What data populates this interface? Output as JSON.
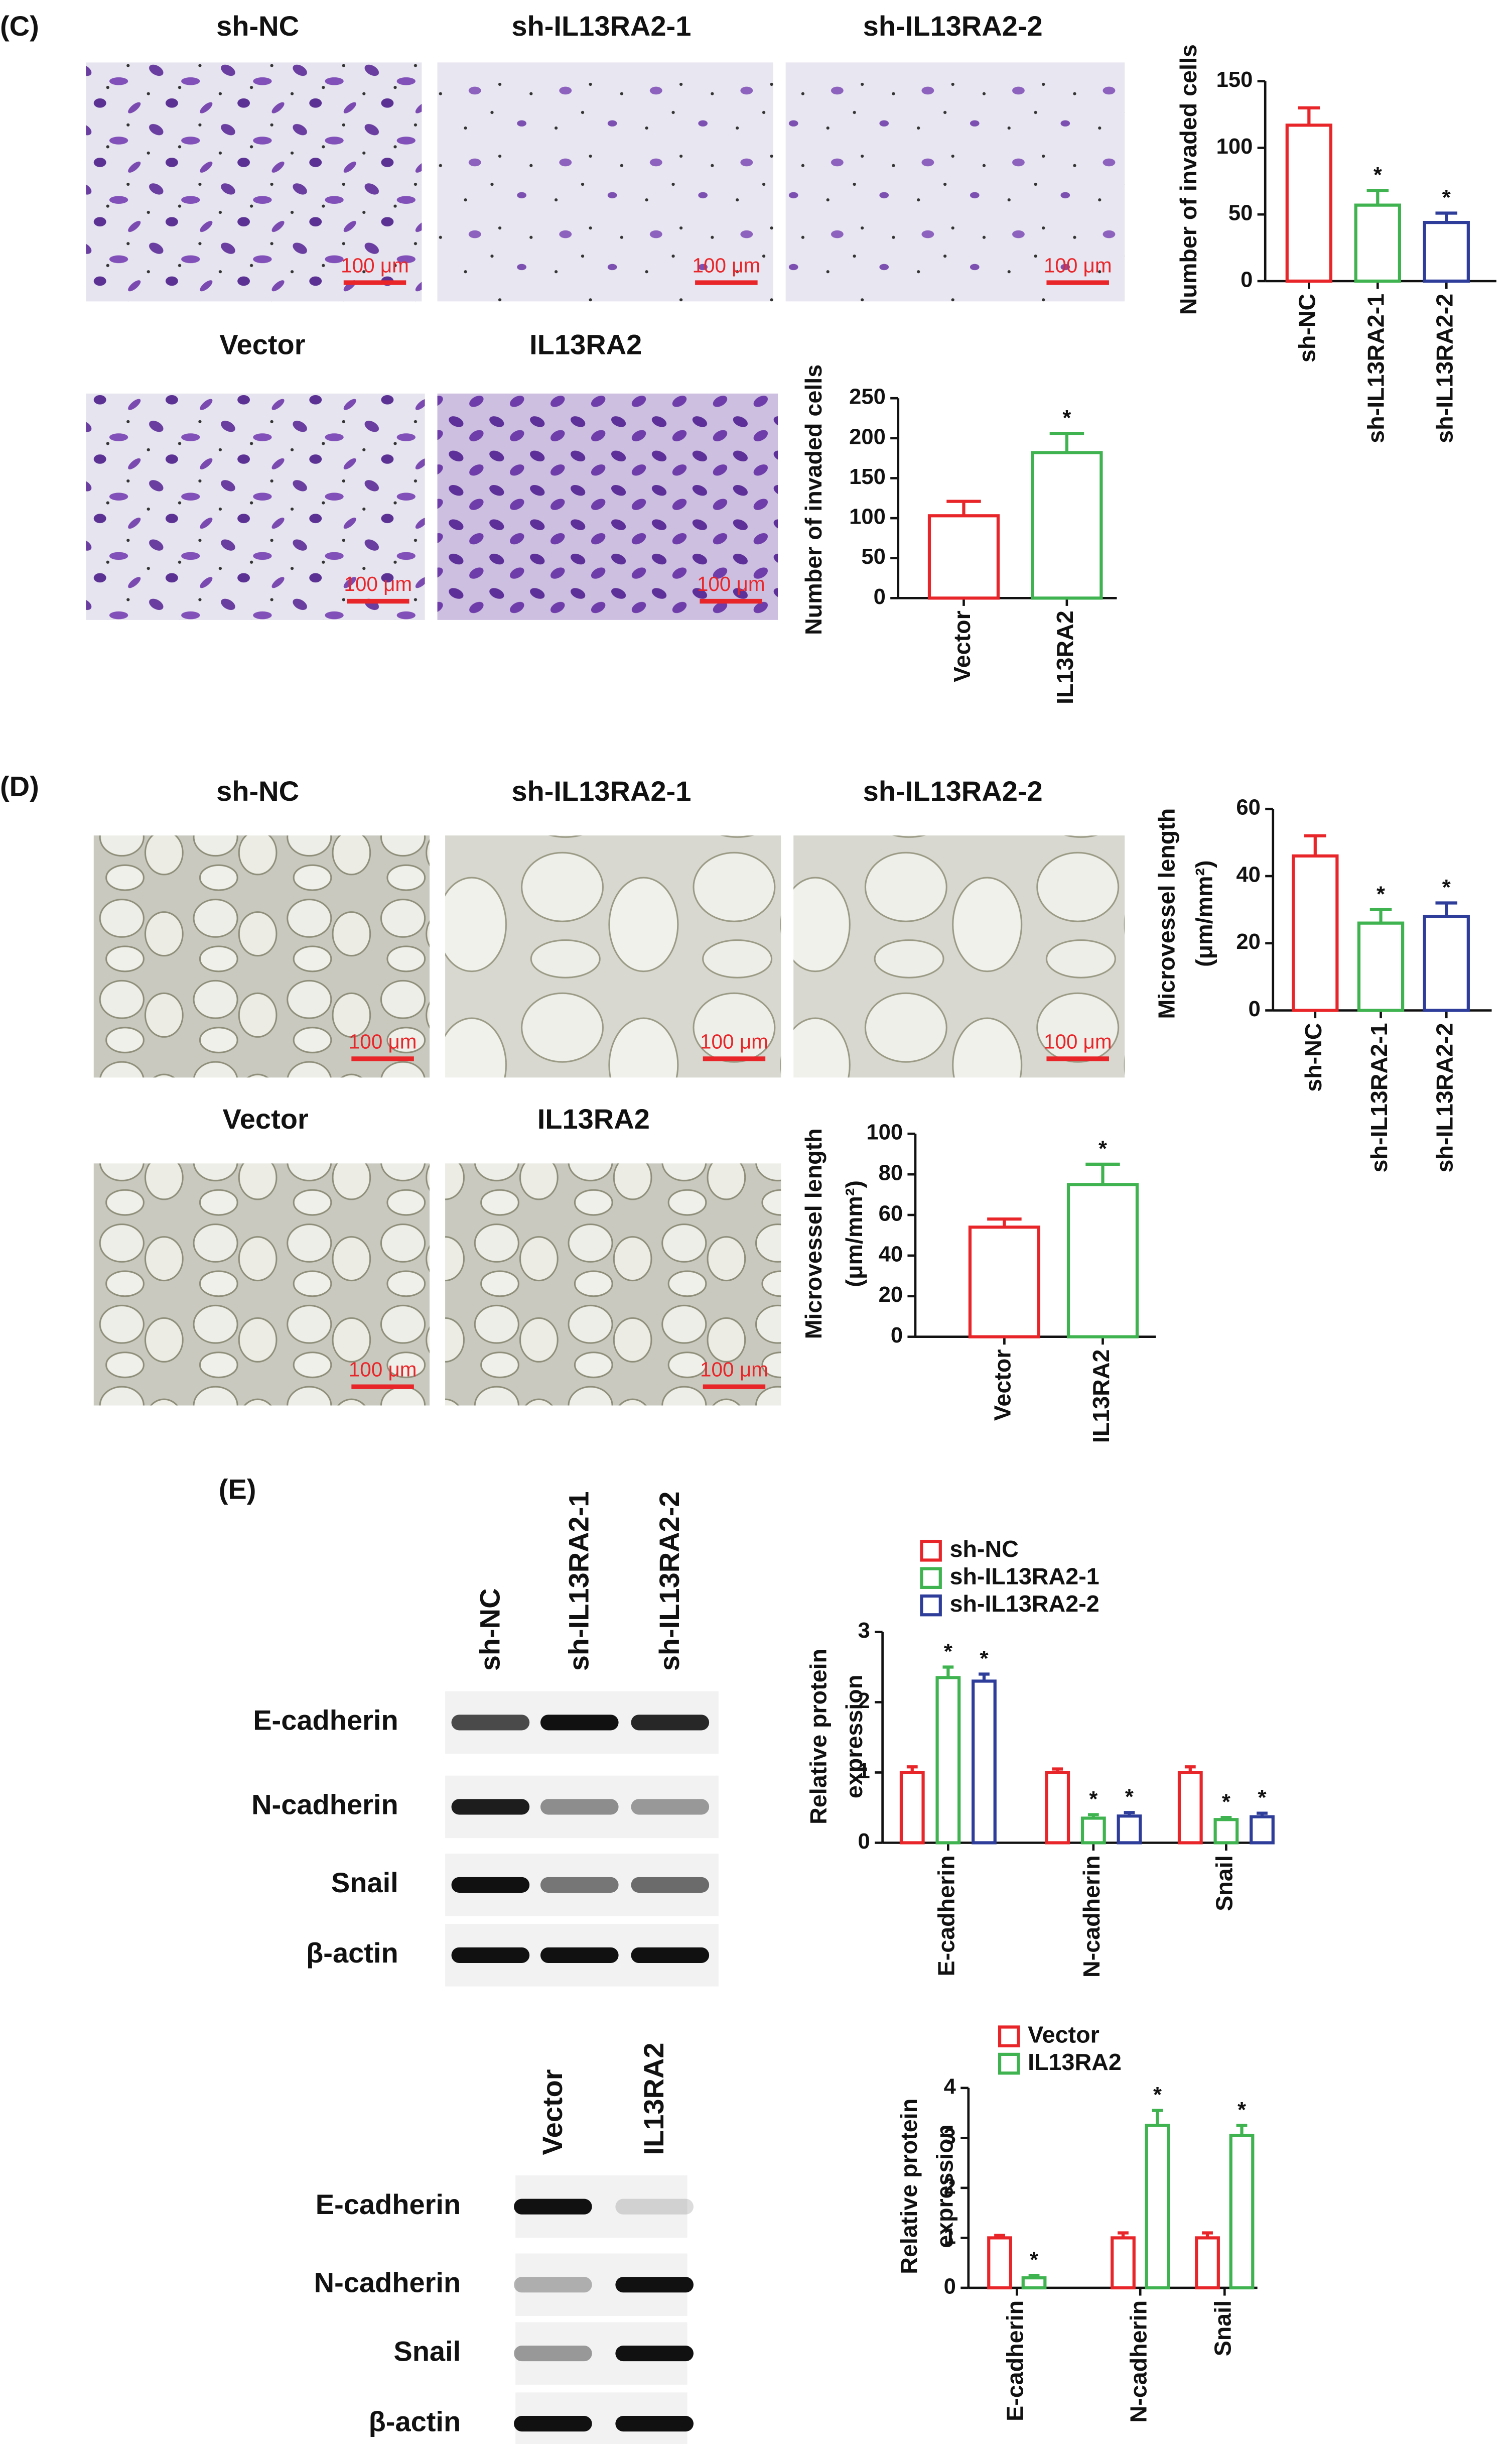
{
  "panels": {
    "C": {
      "label": "(C)",
      "images": [
        "sh-NC",
        "sh-IL13RA2-1",
        "sh-IL13RA2-2",
        "Vector",
        "IL13RA2"
      ],
      "scale_label": "100 μm"
    },
    "D": {
      "label": "(D)",
      "images": [
        "sh-NC",
        "sh-IL13RA2-1",
        "sh-IL13RA2-2",
        "Vector",
        "IL13RA2"
      ],
      "scale_label": "100 μm"
    },
    "E": {
      "label": "(E)",
      "blots": [
        {
          "lanes": [
            "sh-NC",
            "sh-IL13RA2-1",
            "sh-IL13RA2-2"
          ],
          "rows": [
            "E-cadherin",
            "N-cadherin",
            "Snail",
            "β-actin"
          ]
        },
        {
          "lanes": [
            "Vector",
            "IL13RA2"
          ],
          "rows": [
            "E-cadherin",
            "N-cadherin",
            "Snail",
            "β-actin"
          ]
        }
      ]
    }
  },
  "chart_data": [
    {
      "type": "bar",
      "y_label": [
        "Number of invaded cells"
      ],
      "categories": [
        "sh-NC",
        "sh-IL13RA2-1",
        "sh-IL13RA2-2"
      ],
      "values": [
        117,
        57,
        44
      ],
      "errors": [
        13,
        11,
        7
      ],
      "sig": [
        null,
        "*",
        "*"
      ],
      "colors": [
        "#e8262a",
        "#3fb34f",
        "#2e3d9a"
      ],
      "ylim": [
        0,
        150
      ],
      "yticks": [
        0,
        50,
        100,
        150
      ]
    },
    {
      "type": "bar",
      "y_label": [
        "Number of invaded cells"
      ],
      "categories": [
        "Vector",
        "IL13RA2"
      ],
      "values": [
        103,
        182
      ],
      "errors": [
        18,
        24
      ],
      "sig": [
        null,
        "*"
      ],
      "colors": [
        "#e8262a",
        "#3fb34f"
      ],
      "ylim": [
        0,
        250
      ],
      "yticks": [
        0,
        50,
        100,
        150,
        200,
        250
      ]
    },
    {
      "type": "bar",
      "y_label": [
        "Microvessel length",
        "(μm/mm²)"
      ],
      "categories": [
        "sh-NC",
        "sh-IL13RA2-1",
        "sh-IL13RA2-2"
      ],
      "values": [
        46,
        26,
        28
      ],
      "errors": [
        6,
        4,
        4
      ],
      "sig": [
        null,
        "*",
        "*"
      ],
      "colors": [
        "#e8262a",
        "#3fb34f",
        "#2e3d9a"
      ],
      "ylim": [
        0,
        60
      ],
      "yticks": [
        0,
        20,
        40,
        60
      ]
    },
    {
      "type": "bar",
      "y_label": [
        "Microvessel length",
        "(μm/mm²)"
      ],
      "categories": [
        "Vector",
        "IL13RA2"
      ],
      "values": [
        54,
        75
      ],
      "errors": [
        4,
        10
      ],
      "sig": [
        null,
        "*"
      ],
      "colors": [
        "#e8262a",
        "#3fb34f"
      ],
      "ylim": [
        0,
        100
      ],
      "yticks": [
        0,
        20,
        40,
        60,
        80,
        100
      ]
    },
    {
      "type": "grouped_bar",
      "y_label": [
        "Relative protein",
        "expression"
      ],
      "categories": [
        "E-cadherin",
        "N-cadherin",
        "Snail"
      ],
      "series": [
        {
          "name": "sh-NC",
          "color": "#e8262a",
          "values": [
            1,
            1,
            1
          ],
          "errors": [
            0.08,
            0.05,
            0.08
          ],
          "sig": [
            null,
            null,
            null
          ]
        },
        {
          "name": "sh-IL13RA2-1",
          "color": "#3fb34f",
          "values": [
            2.35,
            0.35,
            0.33
          ],
          "errors": [
            0.15,
            0.05,
            0.03
          ],
          "sig": [
            "*",
            "*",
            "*"
          ]
        },
        {
          "name": "sh-IL13RA2-2",
          "color": "#2e3d9a",
          "values": [
            2.3,
            0.38,
            0.37
          ],
          "errors": [
            0.1,
            0.05,
            0.05
          ],
          "sig": [
            "*",
            "*",
            "*"
          ]
        }
      ],
      "ylim": [
        0,
        3
      ],
      "yticks": [
        0,
        1,
        2,
        3
      ]
    },
    {
      "type": "grouped_bar",
      "y_label": [
        "Relative protein",
        "expression"
      ],
      "categories": [
        "E-cadherin",
        "N-cadherin",
        "Snail"
      ],
      "series": [
        {
          "name": "Vector",
          "color": "#e8262a",
          "values": [
            1,
            1,
            1
          ],
          "errors": [
            0.05,
            0.1,
            0.1
          ],
          "sig": [
            null,
            null,
            null
          ]
        },
        {
          "name": "IL13RA2",
          "color": "#3fb34f",
          "values": [
            0.2,
            3.25,
            3.05
          ],
          "errors": [
            0.05,
            0.3,
            0.2
          ],
          "sig": [
            "*",
            "*",
            "*"
          ]
        }
      ],
      "ylim": [
        0,
        4
      ],
      "yticks": [
        0,
        1,
        2,
        3,
        4
      ]
    }
  ]
}
